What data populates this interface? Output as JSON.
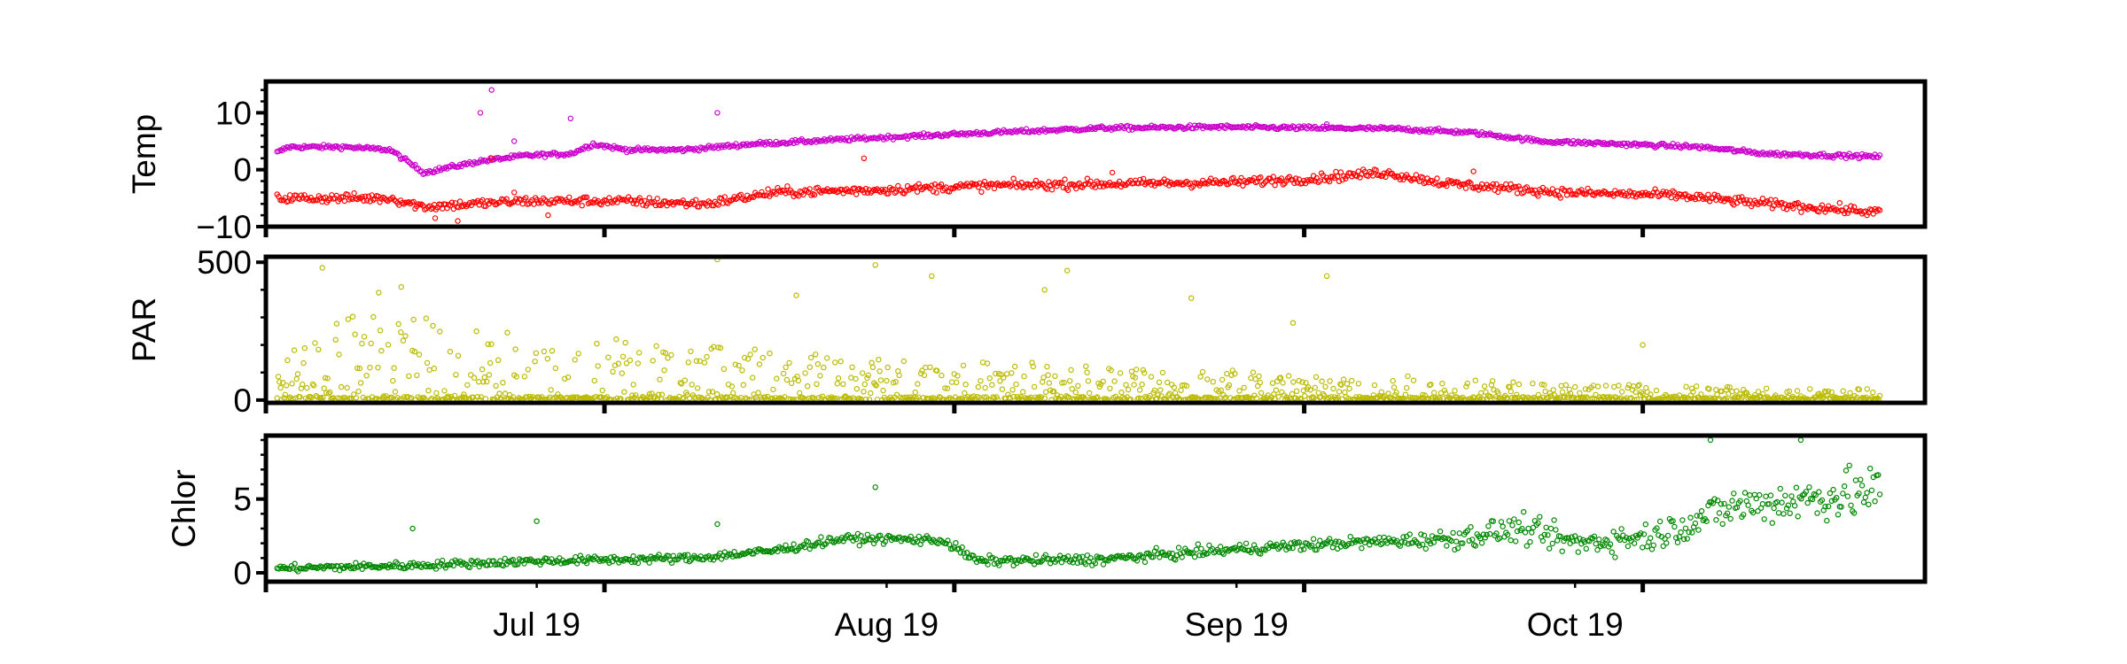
{
  "chart_data": [
    {
      "type": "scatter",
      "ylabel": "Temp",
      "ylim": [
        -10,
        15.5
      ],
      "yticks": [
        -10,
        0,
        10
      ],
      "ytick_labels": [
        "−10",
        "0",
        "10"
      ],
      "yminor": 2,
      "series": [
        {
          "color": "#cc00cc",
          "marker": "open-circle",
          "trend": [
            [
              "2019-06-08",
              3
            ],
            [
              "2019-06-09",
              4
            ],
            [
              "2019-06-14",
              4
            ],
            [
              "2019-06-18",
              3.5
            ],
            [
              "2019-06-21",
              -0.5
            ],
            [
              "2019-06-26",
              1.5
            ],
            [
              "2019-06-30",
              2.5
            ],
            [
              "2019-07-04",
              2.8
            ],
            [
              "2019-07-06",
              4.5
            ],
            [
              "2019-07-09",
              3.5
            ],
            [
              "2019-07-14",
              3.5
            ],
            [
              "2019-07-20",
              4.5
            ],
            [
              "2019-07-30",
              5.5
            ],
            [
              "2019-08-10",
              6.5
            ],
            [
              "2019-08-20",
              7.3
            ],
            [
              "2019-08-30",
              7.5
            ],
            [
              "2019-09-09",
              7.3
            ],
            [
              "2019-09-15",
              7.2
            ],
            [
              "2019-09-22",
              6.5
            ],
            [
              "2019-09-28",
              5
            ],
            [
              "2019-10-08",
              4.3
            ],
            [
              "2019-10-12",
              4
            ],
            [
              "2019-10-18",
              2.8
            ],
            [
              "2019-10-28",
              2.3
            ]
          ],
          "noise": 0.35,
          "outliers": [
            [
              "2019-06-27",
              14
            ],
            [
              "2019-06-26",
              10
            ],
            [
              "2019-07-04",
              9
            ],
            [
              "2019-06-29",
              5
            ],
            [
              "2019-07-17",
              10
            ],
            [
              "2019-09-09",
              8
            ]
          ]
        },
        {
          "color": "#ff0000",
          "marker": "open-circle",
          "trend": [
            [
              "2019-06-08",
              -5
            ],
            [
              "2019-06-18",
              -5
            ],
            [
              "2019-06-21",
              -6.5
            ],
            [
              "2019-06-30",
              -5.5
            ],
            [
              "2019-07-08",
              -5.5
            ],
            [
              "2019-07-16",
              -6
            ],
            [
              "2019-07-22",
              -4
            ],
            [
              "2019-08-01",
              -3.5
            ],
            [
              "2019-08-10",
              -2.8
            ],
            [
              "2019-08-20",
              -2.5
            ],
            [
              "2019-09-01",
              -2.2
            ],
            [
              "2019-09-08",
              -1.5
            ],
            [
              "2019-09-14",
              -0.5
            ],
            [
              "2019-09-20",
              -2.5
            ],
            [
              "2019-09-30",
              -4
            ],
            [
              "2019-10-10",
              -4.5
            ],
            [
              "2019-10-18",
              -6
            ],
            [
              "2019-10-28",
              -7.5
            ]
          ],
          "noise": 0.8,
          "outliers": [
            [
              "2019-06-22",
              -8.5
            ],
            [
              "2019-06-24",
              -9
            ],
            [
              "2019-06-29",
              -4
            ],
            [
              "2019-06-27",
              2
            ],
            [
              "2019-07-02",
              -8
            ],
            [
              "2019-07-30",
              2
            ],
            [
              "2019-08-21",
              -0.5
            ],
            [
              "2019-09-22",
              -0.3
            ]
          ]
        }
      ]
    },
    {
      "type": "scatter",
      "ylabel": "PAR",
      "ylim": [
        -10,
        520
      ],
      "yticks": [
        0,
        500
      ],
      "ytick_labels": [
        "0",
        "500"
      ],
      "yminor": 100,
      "series": [
        {
          "color": "#bbbb00",
          "marker": "open-circle",
          "envelope": [
            [
              "2019-06-08",
              150
            ],
            [
              "2019-06-15",
              320
            ],
            [
              "2019-07-01",
              260
            ],
            [
              "2019-07-15",
              200
            ],
            [
              "2019-08-01",
              150
            ],
            [
              "2019-08-15",
              140
            ],
            [
              "2019-09-01",
              120
            ],
            [
              "2019-09-15",
              90
            ],
            [
              "2019-10-01",
              60
            ],
            [
              "2019-10-28",
              40
            ]
          ],
          "peaks": [
            [
              "2019-06-12",
              480
            ],
            [
              "2019-06-17",
              390
            ],
            [
              "2019-06-19",
              410
            ],
            [
              "2019-07-17",
              510
            ],
            [
              "2019-07-24",
              380
            ],
            [
              "2019-07-31",
              490
            ],
            [
              "2019-08-05",
              450
            ],
            [
              "2019-08-15",
              400
            ],
            [
              "2019-08-17",
              470
            ],
            [
              "2019-08-28",
              370
            ],
            [
              "2019-09-09",
              450
            ],
            [
              "2019-09-06",
              280
            ],
            [
              "2019-10-07",
              200
            ]
          ]
        }
      ]
    },
    {
      "type": "scatter",
      "ylabel": "Chlor",
      "ylim": [
        -0.6,
        9.3
      ],
      "yticks": [
        0,
        5
      ],
      "ytick_labels": [
        "0",
        "5"
      ],
      "yminor": 1,
      "series": [
        {
          "color": "#008800",
          "marker": "open-circle",
          "trend": [
            [
              "2019-06-08",
              0.3
            ],
            [
              "2019-06-20",
              0.5
            ],
            [
              "2019-07-01",
              0.8
            ],
            [
              "2019-07-15",
              1
            ],
            [
              "2019-07-22",
              1.5
            ],
            [
              "2019-07-28",
              2.3
            ],
            [
              "2019-08-01",
              2.3
            ],
            [
              "2019-08-06",
              2.2
            ],
            [
              "2019-08-09",
              0.8
            ],
            [
              "2019-08-20",
              0.9
            ],
            [
              "2019-09-01",
              1.6
            ],
            [
              "2019-09-10",
              2.0
            ],
            [
              "2019-09-20",
              2.3
            ],
            [
              "2019-09-26",
              3.0
            ],
            [
              "2019-10-01",
              2.0
            ],
            [
              "2019-10-08",
              2.5
            ],
            [
              "2019-10-15",
              4.5
            ],
            [
              "2019-10-28",
              5.5
            ]
          ],
          "noise_trend": [
            [
              "2019-06-08",
              0.25
            ],
            [
              "2019-08-01",
              0.3
            ],
            [
              "2019-09-15",
              0.4
            ],
            [
              "2019-09-25",
              0.9
            ],
            [
              "2019-10-05",
              0.9
            ],
            [
              "2019-10-28",
              1.8
            ]
          ],
          "outliers": [
            [
              "2019-06-20",
              3
            ],
            [
              "2019-07-01",
              3.5
            ],
            [
              "2019-07-17",
              3.3
            ],
            [
              "2019-07-31",
              5.8
            ],
            [
              "2019-10-13",
              9
            ],
            [
              "2019-10-21",
              9
            ]
          ]
        }
      ]
    }
  ],
  "x_axis": {
    "type": "date",
    "range": [
      "2019-06-07",
      "2019-11-01"
    ],
    "major_ticks": [
      "2019-06-07",
      "2019-07-07",
      "2019-08-07",
      "2019-09-07",
      "2019-10-07"
    ],
    "minor_ticks": [
      "2019-07-01",
      "2019-08-01",
      "2019-09-01",
      "2019-10-01"
    ],
    "tick_labels": [
      "Jul 19",
      "Aug 19",
      "Sep 19",
      "Oct 19"
    ]
  }
}
